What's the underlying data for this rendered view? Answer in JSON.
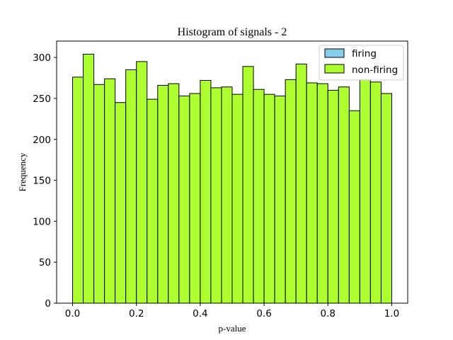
{
  "chart_data": {
    "type": "bar",
    "title": "Histogram of signals - 2",
    "xlabel": "p-value",
    "ylabel": "Frequency",
    "xlim": [
      -0.05,
      1.05
    ],
    "ylim": [
      0,
      320
    ],
    "xticks": [
      0.0,
      0.2,
      0.4,
      0.6,
      0.8,
      1.0
    ],
    "xtick_labels": [
      "0.0",
      "0.2",
      "0.4",
      "0.6",
      "0.8",
      "1.0"
    ],
    "yticks": [
      0,
      50,
      100,
      150,
      200,
      250,
      300
    ],
    "ytick_labels": [
      "0",
      "50",
      "100",
      "150",
      "200",
      "250",
      "300"
    ],
    "grid": false,
    "legend_position": "top-right",
    "bin_edges": [
      0.0,
      0.0333,
      0.0667,
      0.1,
      0.1333,
      0.1667,
      0.2,
      0.2333,
      0.2667,
      0.3,
      0.3333,
      0.3667,
      0.4,
      0.4333,
      0.4667,
      0.5,
      0.5333,
      0.5667,
      0.6,
      0.6333,
      0.6667,
      0.7,
      0.7333,
      0.7667,
      0.8,
      0.8333,
      0.8667,
      0.9,
      0.9333,
      0.9667,
      1.0
    ],
    "series": [
      {
        "name": "firing",
        "color": "#87ceeb",
        "values": [
          0,
          0,
          0,
          0,
          0,
          0,
          0,
          0,
          0,
          0,
          0,
          0,
          0,
          0,
          0,
          0,
          0,
          0,
          0,
          0,
          0,
          0,
          0,
          0,
          0,
          0,
          0,
          0,
          0,
          0
        ]
      },
      {
        "name": "non-firing",
        "color": "#adff2f",
        "values": [
          276,
          304,
          267,
          274,
          245,
          285,
          295,
          249,
          266,
          268,
          253,
          256,
          272,
          263,
          264,
          255,
          289,
          261,
          255,
          253,
          273,
          292,
          269,
          268,
          260,
          264,
          235,
          273,
          270,
          256
        ]
      }
    ]
  }
}
